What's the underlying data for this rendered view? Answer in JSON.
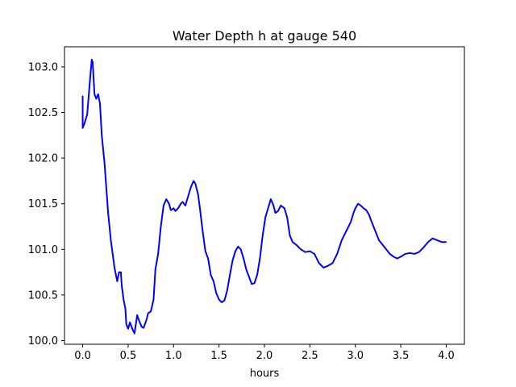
{
  "chart_data": {
    "type": "line",
    "title": "Water Depth h at gauge 540",
    "xlabel": "hours",
    "ylabel": "",
    "xlim": [
      -0.2,
      4.2
    ],
    "ylim": [
      99.96,
      103.22
    ],
    "grid": false,
    "x_ticks": [
      0.0,
      0.5,
      1.0,
      1.5,
      2.0,
      2.5,
      3.0,
      3.5,
      4.0
    ],
    "x_tick_labels": [
      "0.0",
      "0.5",
      "1.0",
      "1.5",
      "2.0",
      "2.5",
      "3.0",
      "3.5",
      "4.0"
    ],
    "y_ticks": [
      100.0,
      100.5,
      101.0,
      101.5,
      102.0,
      102.5,
      103.0
    ],
    "y_tick_labels": [
      "100.0",
      "100.5",
      "101.0",
      "101.5",
      "102.0",
      "102.5",
      "103.0"
    ],
    "series": [
      {
        "name": "",
        "color": "#0000ff",
        "x": [
          0.0,
          0.0,
          0.02,
          0.05,
          0.08,
          0.1,
          0.11,
          0.13,
          0.15,
          0.17,
          0.19,
          0.21,
          0.24,
          0.28,
          0.31,
          0.35,
          0.38,
          0.4,
          0.42,
          0.43,
          0.45,
          0.47,
          0.48,
          0.5,
          0.52,
          0.55,
          0.57,
          0.6,
          0.62,
          0.65,
          0.67,
          0.7,
          0.72,
          0.75,
          0.78,
          0.8,
          0.83,
          0.86,
          0.89,
          0.92,
          0.95,
          0.97,
          1.0,
          1.02,
          1.05,
          1.08,
          1.1,
          1.13,
          1.16,
          1.19,
          1.22,
          1.24,
          1.27,
          1.29,
          1.32,
          1.35,
          1.38,
          1.41,
          1.44,
          1.47,
          1.5,
          1.53,
          1.56,
          1.59,
          1.62,
          1.65,
          1.68,
          1.71,
          1.74,
          1.77,
          1.8,
          1.83,
          1.86,
          1.89,
          1.92,
          1.95,
          1.98,
          2.01,
          2.04,
          2.07,
          2.1,
          2.12,
          2.15,
          2.18,
          2.22,
          2.25,
          2.28,
          2.31,
          2.35,
          2.4,
          2.45,
          2.5,
          2.55,
          2.6,
          2.65,
          2.7,
          2.75,
          2.8,
          2.85,
          2.9,
          2.95,
          2.98,
          3.0,
          3.03,
          3.06,
          3.09,
          3.12,
          3.15,
          3.18,
          3.22,
          3.26,
          3.3,
          3.34,
          3.38,
          3.42,
          3.46,
          3.5,
          3.55,
          3.6,
          3.65,
          3.7,
          3.75,
          3.8,
          3.85,
          3.9,
          3.95,
          4.0
        ],
        "y": [
          102.68,
          102.33,
          102.38,
          102.48,
          102.85,
          103.08,
          103.05,
          102.7,
          102.65,
          102.7,
          102.6,
          102.25,
          101.95,
          101.4,
          101.1,
          100.8,
          100.65,
          100.75,
          100.75,
          100.6,
          100.45,
          100.35,
          100.18,
          100.13,
          100.2,
          100.12,
          100.08,
          100.28,
          100.22,
          100.15,
          100.14,
          100.22,
          100.3,
          100.32,
          100.45,
          100.78,
          100.95,
          101.25,
          101.48,
          101.55,
          101.5,
          101.43,
          101.45,
          101.42,
          101.45,
          101.5,
          101.52,
          101.48,
          101.58,
          101.68,
          101.75,
          101.72,
          101.6,
          101.45,
          101.2,
          100.98,
          100.9,
          100.72,
          100.65,
          100.52,
          100.45,
          100.42,
          100.44,
          100.55,
          100.72,
          100.88,
          100.98,
          101.03,
          101.0,
          100.9,
          100.78,
          100.7,
          100.62,
          100.63,
          100.72,
          100.9,
          101.15,
          101.35,
          101.45,
          101.55,
          101.48,
          101.4,
          101.42,
          101.48,
          101.45,
          101.35,
          101.15,
          101.08,
          101.05,
          101.0,
          100.97,
          100.98,
          100.95,
          100.85,
          100.8,
          100.82,
          100.85,
          100.95,
          101.1,
          101.2,
          101.3,
          101.4,
          101.45,
          101.5,
          101.48,
          101.45,
          101.43,
          101.38,
          101.3,
          101.2,
          101.1,
          101.05,
          101.0,
          100.95,
          100.92,
          100.9,
          100.92,
          100.95,
          100.96,
          100.95,
          100.97,
          101.02,
          101.08,
          101.12,
          101.1,
          101.08,
          101.08
        ]
      }
    ]
  }
}
